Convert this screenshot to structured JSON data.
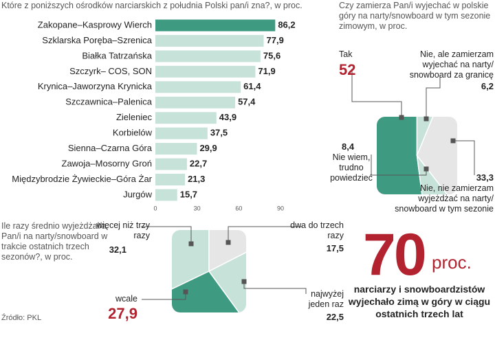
{
  "chart_data": [
    {
      "type": "bar",
      "orientation": "horizontal",
      "title": "Które z poniższych ośrodków narciarskich z południa Polski pan/i zna?, w proc.",
      "categories": [
        "Zakopane–Kasprowy Wierch",
        "Szklarska Poręba–Szrenica",
        "Białka Tatrzańska",
        "Szczyrk– COS, SON",
        "Krynica–Jaworzyna Krynicka",
        "Szczawnica–Palenica",
        "Zieleniec",
        "Korbielów",
        "Sienna–Czarna Góra",
        "Zawoja–Mosorny Groń",
        "Międzybrodzie Żywieckie–Góra Żar",
        "Jurgów"
      ],
      "values": [
        86.2,
        77.9,
        75.6,
        71.9,
        61.4,
        57.4,
        43.9,
        37.5,
        29.9,
        22.7,
        21.3,
        15.7
      ],
      "value_labels": [
        "86,2",
        "77,9",
        "75,6",
        "71,9",
        "61,4",
        "57,4",
        "43,9",
        "37,5",
        "29,9",
        "22,7",
        "21,3",
        "15,7"
      ],
      "colors": [
        "#3f9a82",
        "#c7e2d8",
        "#c7e2d8",
        "#c7e2d8",
        "#c7e2d8",
        "#c7e2d8",
        "#c7e2d8",
        "#c7e2d8",
        "#c7e2d8",
        "#c7e2d8",
        "#c7e2d8",
        "#c7e2d8"
      ],
      "xlim": [
        0,
        90
      ],
      "xticks": [
        0,
        30,
        60,
        90
      ]
    },
    {
      "type": "pie",
      "title": "Czy zamierza Pan/i wyjechać w polskie góry na narty/snowboard w tym sezonie zimowym, w proc.",
      "categories": [
        "Tak",
        "Nie, ale zamierzam wyjechać na narty/ snowboard za granicę",
        "Nie, nie zamierzam wyjeżdżać na narty/ snowboard w tym sezonie",
        "Nie wiem, trudno powiedzieć"
      ],
      "values": [
        52,
        6.2,
        33.3,
        8.4
      ],
      "value_labels": [
        "52",
        "6,2",
        "33,3",
        "8,4"
      ],
      "colors": [
        "#3f9a82",
        "#c7e2d8",
        "#e6e6e6",
        "#c7e2d8"
      ],
      "label_colors": [
        "#b2232f",
        "#222222",
        "#222222",
        "#222222"
      ]
    },
    {
      "type": "pie",
      "title": "Ile razy średnio wyjeżdżał/a Pan/i na narty/snowboard w trakcie ostatnich trzech sezonów?, w proc.",
      "categories": [
        "więcej niż trzy razy",
        "dwa do trzech razy",
        "najwyżej jeden raz",
        "wcale"
      ],
      "values": [
        32.1,
        17.5,
        22.5,
        27.9
      ],
      "value_labels": [
        "32,1",
        "17,5",
        "22,5",
        "27,9"
      ],
      "colors": [
        "#c7e2d8",
        "#e6e6e6",
        "#c7e2d8",
        "#3f9a82"
      ],
      "label_colors": [
        "#222222",
        "#222222",
        "#222222",
        "#b2232f"
      ]
    },
    {
      "type": "stat",
      "value": 70,
      "unit": "proc.",
      "text": "narciarzy i snowboardzistów wyjechało zimą w góry w ciągu ostatnich trzech lat",
      "color": "#b2232f"
    }
  ],
  "source": "Źródło: PKL"
}
